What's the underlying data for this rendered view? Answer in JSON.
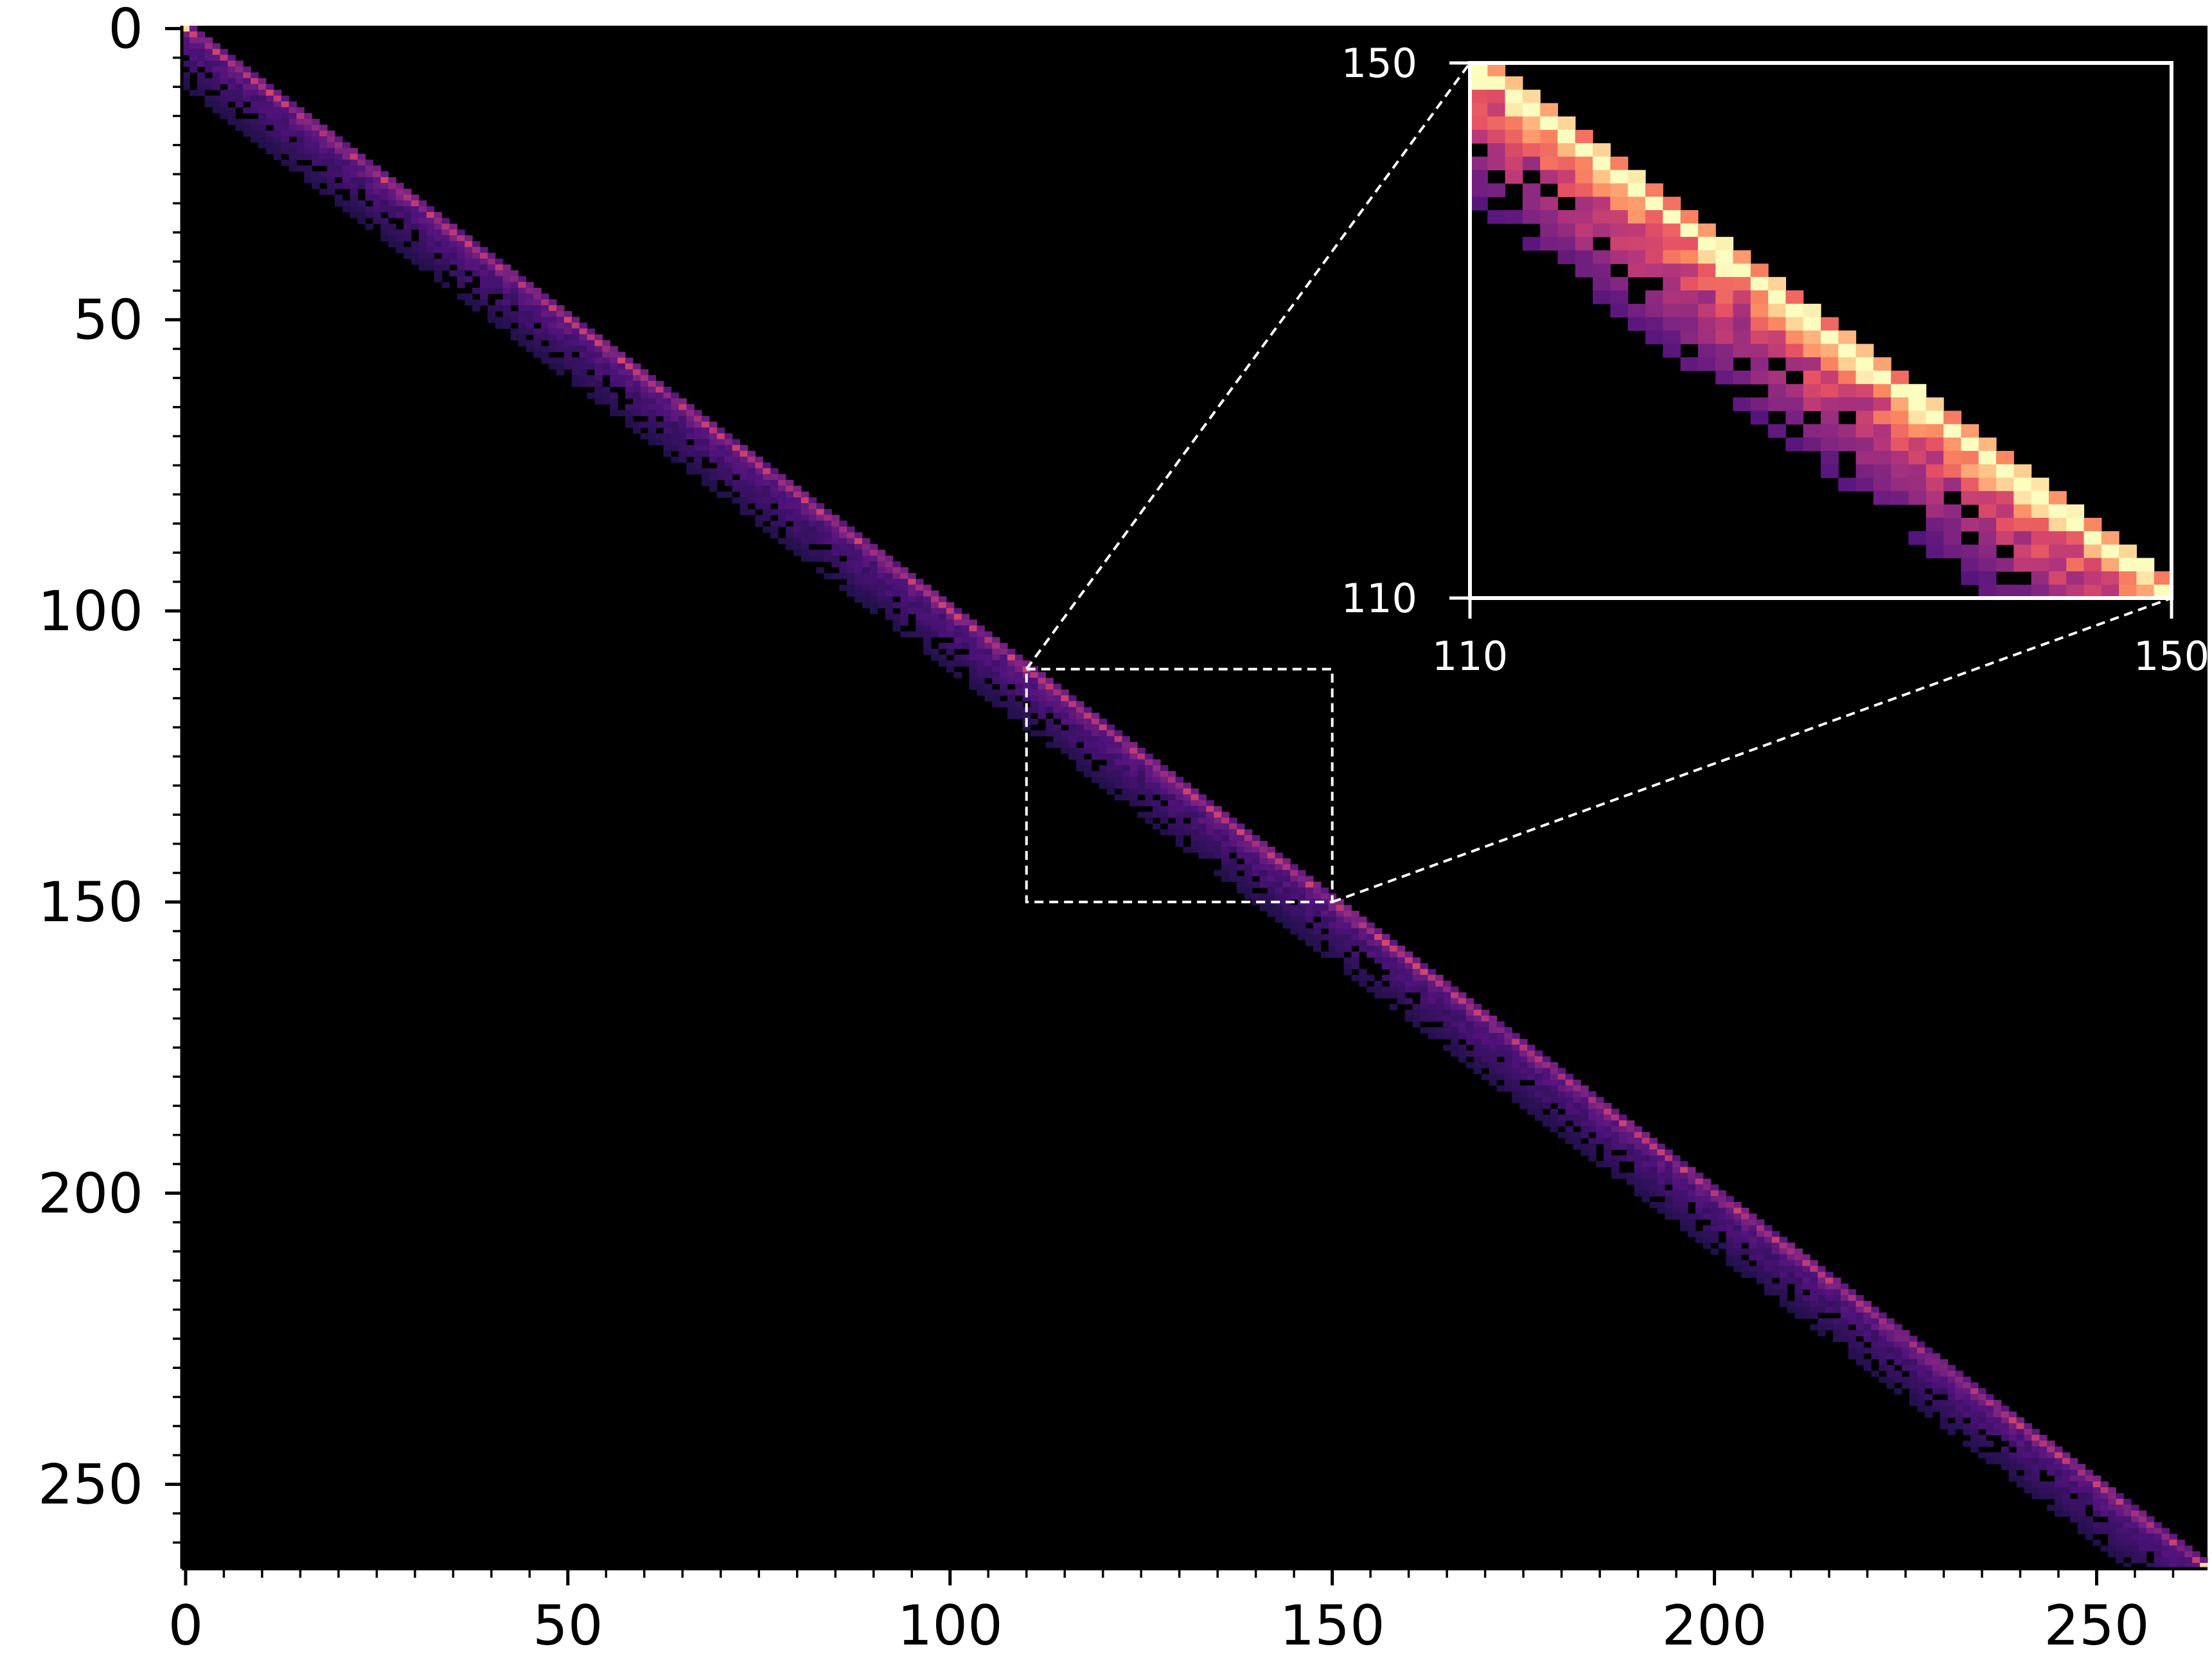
{
  "chart_data": {
    "type": "heatmap",
    "title": "",
    "xlabel": "",
    "ylabel": "",
    "matrix_size": 265,
    "xlim": [
      0,
      264
    ],
    "ylim": [
      264,
      0
    ],
    "y_axis_inverted": true,
    "x_major_ticks": [
      0,
      50,
      100,
      150,
      200,
      250
    ],
    "x_tick_labels": [
      "0",
      "50",
      "100",
      "150",
      "200",
      "250"
    ],
    "y_major_ticks": [
      0,
      50,
      100,
      150,
      200,
      250
    ],
    "y_tick_labels": [
      "0",
      "50",
      "100",
      "150",
      "200",
      "250"
    ],
    "minor_tick_step": 5,
    "colormap": "magma",
    "colorbar": false,
    "grid": false,
    "band_description_values": {
      "diagonal_offsets_below": [
        0,
        1,
        2,
        3,
        4,
        5,
        6,
        7,
        8,
        9,
        10
      ],
      "diagonal_offsets_above": [
        1
      ]
    },
    "inset": {
      "x_range": [
        110,
        150
      ],
      "y_range": [
        110,
        150
      ],
      "x_tick_labels": [
        "110",
        "150"
      ],
      "y_tick_labels_top_to_bottom": [
        "150",
        "110"
      ],
      "position": "top-right",
      "zoom_box_style": "dashed white"
    }
  },
  "colors": {
    "background": "#000000",
    "figure_background": "#ffffff",
    "axis": "#000000",
    "inset_frame": "#ffffff",
    "magma_low": "#2c115f",
    "magma_mid": "#b73779",
    "magma_high": "#fcfdbf"
  }
}
